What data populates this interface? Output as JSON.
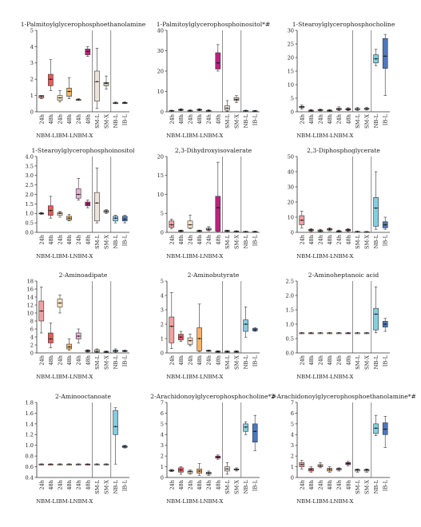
{
  "figure": {
    "categories": [
      "24h",
      "48h",
      "24h",
      "48h",
      "24h",
      "48h",
      "SM-L",
      "SM-X",
      "NB-L",
      "IB-L"
    ],
    "group_labels": [
      "NBM-L",
      "IBM-L",
      "NBM-X"
    ],
    "colors": [
      "#f2a0a0",
      "#e85a5a",
      "#fde3c2",
      "#f4b36a",
      "#e7b2d6",
      "#b8257e",
      "#ece4da",
      "#cfc9b8",
      "#86cde2",
      "#4b79bd"
    ]
  },
  "chart_data": [
    {
      "type": "box",
      "title": "1-Palmitoylglycerophosphoethanolamine",
      "ylim": [
        0,
        5
      ],
      "yticks": [
        0,
        1,
        2,
        3,
        4,
        5
      ],
      "boxes": [
        [
          0.8,
          0.85,
          0.95,
          1.0,
          1.0
        ],
        [
          1.3,
          1.6,
          2.0,
          2.3,
          3.2
        ],
        [
          0.6,
          0.7,
          0.85,
          1.0,
          1.3
        ],
        [
          0.8,
          0.95,
          1.25,
          1.45,
          2.1
        ],
        [
          0.7,
          0.72,
          0.74,
          0.76,
          0.8
        ],
        [
          3.4,
          3.5,
          3.7,
          3.85,
          4.0
        ],
        [
          0.2,
          0.65,
          1.85,
          2.5,
          3.9
        ],
        [
          1.4,
          1.6,
          1.75,
          1.8,
          2.2
        ],
        [
          0.5,
          0.52,
          0.54,
          0.56,
          0.6
        ],
        [
          0.5,
          0.53,
          0.55,
          0.57,
          0.6
        ]
      ]
    },
    {
      "type": "box",
      "title": "1-Palmitoylglycerophosphoinositol*#",
      "ylim": [
        0,
        40
      ],
      "yticks": [
        0,
        10,
        20,
        30,
        40
      ],
      "boxes": [
        [
          0.2,
          0.3,
          0.5,
          0.6,
          0.8
        ],
        [
          0.5,
          0.8,
          1.0,
          1.2,
          1.5
        ],
        [
          0.2,
          0.4,
          0.6,
          0.7,
          1.0
        ],
        [
          0.5,
          0.8,
          1.0,
          1.2,
          1.5
        ],
        [
          0.2,
          0.4,
          0.6,
          0.7,
          1.0
        ],
        [
          20,
          21,
          24,
          29,
          33
        ],
        [
          0.3,
          0.8,
          1.8,
          3.0,
          5.5
        ],
        [
          4.5,
          5.5,
          6.0,
          7.0,
          8.0
        ],
        [
          0.2,
          0.3,
          0.5,
          0.6,
          0.8
        ],
        [
          0.2,
          0.3,
          0.4,
          0.5,
          0.7
        ]
      ]
    },
    {
      "type": "box",
      "title": "1-Stearoylglycerophosphocholine",
      "ylim": [
        0,
        30
      ],
      "yticks": [
        0,
        5,
        10,
        15,
        20,
        25,
        30
      ],
      "boxes": [
        [
          1.0,
          1.5,
          1.8,
          2.0,
          2.5
        ],
        [
          0.2,
          0.4,
          0.5,
          0.6,
          0.8
        ],
        [
          0.3,
          0.5,
          0.6,
          0.8,
          1.0
        ],
        [
          0.2,
          0.4,
          0.5,
          0.6,
          0.8
        ],
        [
          0.4,
          0.7,
          1.0,
          1.3,
          1.8
        ],
        [
          0.4,
          0.7,
          0.9,
          1.2,
          1.5
        ],
        [
          0.5,
          0.8,
          1.0,
          1.2,
          1.6
        ],
        [
          0.6,
          0.9,
          1.1,
          1.3,
          1.7
        ],
        [
          17,
          18,
          19.5,
          21,
          23
        ],
        [
          6,
          16,
          20.5,
          27,
          28.5
        ]
      ]
    },
    {
      "type": "box",
      "title": "1-Stearoylglycerophosphoinositol",
      "ylim": [
        0,
        4
      ],
      "yticks": [
        0,
        0.5,
        1.0,
        1.5,
        2.0,
        2.5,
        3.0,
        3.5,
        4.0
      ],
      "boxes": [
        [
          0.95,
          0.98,
          1.0,
          1.02,
          1.05
        ],
        [
          0.75,
          0.9,
          1.15,
          1.4,
          1.9
        ],
        [
          0.8,
          0.9,
          1.0,
          1.05,
          1.1
        ],
        [
          0.6,
          0.65,
          0.75,
          0.85,
          0.95
        ],
        [
          1.7,
          1.8,
          2.0,
          2.3,
          2.85
        ],
        [
          1.3,
          1.4,
          1.5,
          1.6,
          1.7
        ],
        [
          0.5,
          0.6,
          1.55,
          2.1,
          3.4
        ],
        [
          1.0,
          1.05,
          1.1,
          1.15,
          1.2
        ],
        [
          0.5,
          0.6,
          0.75,
          0.85,
          0.9
        ],
        [
          0.5,
          0.6,
          0.7,
          0.85,
          0.9
        ]
      ]
    },
    {
      "type": "box",
      "title": "2,3-Dihydroxyisovalerate",
      "ylim": [
        0,
        20
      ],
      "yticks": [
        0,
        5,
        10,
        15,
        20
      ],
      "boxes": [
        [
          1.0,
          1.3,
          2.0,
          3.0,
          3.5
        ],
        [
          0.2,
          0.3,
          0.4,
          0.5,
          0.6
        ],
        [
          1.0,
          1.2,
          2.0,
          3.0,
          4.5
        ],
        [
          0.2,
          0.3,
          0.4,
          0.5,
          0.6
        ],
        [
          0.4,
          0.6,
          0.8,
          1.1,
          1.5
        ],
        [
          0.2,
          0.3,
          6.5,
          9.5,
          18.5
        ],
        [
          0.2,
          0.3,
          0.4,
          0.5,
          0.6
        ],
        [
          0.1,
          0.2,
          0.3,
          0.35,
          0.4
        ],
        [
          0.1,
          0.15,
          0.2,
          0.25,
          0.3
        ],
        [
          0.1,
          0.15,
          0.2,
          0.25,
          0.3
        ]
      ]
    },
    {
      "type": "box",
      "title": "2,3-Diphosphoglycerate",
      "ylim": [
        0,
        50
      ],
      "yticks": [
        0,
        10,
        20,
        30,
        40,
        50
      ],
      "boxes": [
        [
          3,
          5,
          8,
          11,
          14
        ],
        [
          0.5,
          1,
          1.5,
          2,
          2.5
        ],
        [
          0.3,
          0.5,
          1,
          1.5,
          2
        ],
        [
          1,
          1.5,
          2,
          2.5,
          3
        ],
        [
          0.2,
          0.5,
          0.8,
          1,
          1.5
        ],
        [
          0.5,
          1,
          1.5,
          2,
          2.5
        ],
        [
          0.2,
          0.3,
          0.5,
          0.6,
          0.8
        ],
        [
          0.2,
          0.3,
          0.4,
          0.5,
          0.6
        ],
        [
          2,
          4,
          16,
          23,
          40
        ],
        [
          2,
          3,
          5,
          7,
          10
        ]
      ]
    },
    {
      "type": "box",
      "title": "2-Aminoadipate",
      "ylim": [
        0,
        18
      ],
      "yticks": [
        0,
        2,
        4,
        6,
        8,
        10,
        12,
        14,
        16,
        18
      ],
      "boxes": [
        [
          5,
          8,
          10.5,
          13,
          16.5
        ],
        [
          1.3,
          2.5,
          3.5,
          5,
          7.5
        ],
        [
          10,
          11.5,
          12.5,
          13.5,
          14.5
        ],
        [
          0.7,
          1,
          1.5,
          2.2,
          3.5
        ],
        [
          2.5,
          3.5,
          4.2,
          5,
          6
        ],
        [
          0.2,
          0.35,
          0.5,
          0.65,
          0.8
        ],
        [
          0.1,
          0.2,
          0.4,
          0.8,
          1.0
        ],
        [
          0.1,
          0.2,
          0.3,
          0.4,
          0.5
        ],
        [
          0.1,
          0.3,
          0.5,
          0.7,
          1.0
        ],
        [
          0.3,
          0.4,
          0.5,
          0.6,
          0.7
        ]
      ]
    },
    {
      "type": "box",
      "title": "2-Aminobutyrate",
      "ylim": [
        0,
        5
      ],
      "yticks": [
        0,
        1,
        2,
        3,
        4,
        5
      ],
      "boxes": [
        [
          0.3,
          0.7,
          1.85,
          2.5,
          4.2
        ],
        [
          0.8,
          0.9,
          1.1,
          1.3,
          1.5
        ],
        [
          0.5,
          0.6,
          0.85,
          1.05,
          1.3
        ],
        [
          0.1,
          0.15,
          1.0,
          1.75,
          3.4
        ],
        [
          0.1,
          0.12,
          0.15,
          0.18,
          0.2
        ],
        [
          0.05,
          0.07,
          0.1,
          0.12,
          0.15
        ],
        [
          0.05,
          0.07,
          0.1,
          0.12,
          0.15
        ],
        [
          0.05,
          0.07,
          0.1,
          0.12,
          0.15
        ],
        [
          1.1,
          1.5,
          2.0,
          2.3,
          3.2
        ],
        [
          1.5,
          1.55,
          1.6,
          1.7,
          1.75
        ]
      ]
    },
    {
      "type": "box",
      "title": "2-Aminoheptanoic acid",
      "ylim": [
        0,
        2.5
      ],
      "yticks": [
        0,
        0.5,
        1.0,
        1.5,
        2.0,
        2.5
      ],
      "boxes": [
        [
          0.7,
          0.7,
          0.7,
          0.7,
          0.7
        ],
        [
          0.7,
          0.7,
          0.7,
          0.7,
          0.7
        ],
        [
          0.7,
          0.7,
          0.7,
          0.7,
          0.7
        ],
        [
          0.7,
          0.7,
          0.7,
          0.7,
          0.7
        ],
        [
          0.7,
          0.7,
          0.7,
          0.7,
          0.7
        ],
        [
          0.7,
          0.7,
          0.7,
          0.7,
          0.7
        ],
        [
          0.7,
          0.7,
          0.7,
          0.7,
          0.7
        ],
        [
          0.7,
          0.7,
          0.7,
          0.7,
          0.7
        ],
        [
          0.7,
          0.8,
          1.35,
          1.55,
          2.3
        ],
        [
          0.75,
          0.9,
          1.0,
          1.1,
          1.2
        ]
      ]
    },
    {
      "type": "box",
      "title": "2-Aminooctanoate",
      "ylim": [
        0.4,
        1.8
      ],
      "yticks": [
        0.4,
        0.6,
        0.8,
        1.0,
        1.2,
        1.4,
        1.6,
        1.8
      ],
      "boxes": [
        [
          0.65,
          0.65,
          0.65,
          0.65,
          0.65
        ],
        [
          0.65,
          0.65,
          0.65,
          0.65,
          0.65
        ],
        [
          0.65,
          0.65,
          0.65,
          0.65,
          0.65
        ],
        [
          0.65,
          0.65,
          0.65,
          0.65,
          0.65
        ],
        [
          0.65,
          0.65,
          0.65,
          0.65,
          0.65
        ],
        [
          0.65,
          0.65,
          0.65,
          0.65,
          0.65
        ],
        [
          0.65,
          0.65,
          0.65,
          0.65,
          0.65
        ],
        [
          0.65,
          0.65,
          0.65,
          0.65,
          0.65
        ],
        [
          0.65,
          1.2,
          1.35,
          1.65,
          1.7
        ],
        [
          0.95,
          0.96,
          0.98,
          0.99,
          1.0
        ]
      ]
    },
    {
      "type": "box",
      "title": "2-Arachidonoylglycerophosphocholine*#",
      "ylim": [
        0,
        7
      ],
      "yticks": [
        0,
        1,
        2,
        3,
        4,
        5,
        6,
        7
      ],
      "boxes": [
        [
          0.55,
          0.6,
          0.65,
          0.7,
          0.75
        ],
        [
          0.3,
          0.5,
          0.7,
          0.9,
          1.0
        ],
        [
          0.3,
          0.4,
          0.55,
          0.6,
          0.7
        ],
        [
          0.2,
          0.4,
          0.6,
          0.8,
          1.3
        ],
        [
          0.2,
          0.3,
          0.4,
          0.5,
          0.6
        ],
        [
          1.7,
          1.8,
          1.9,
          2.0,
          2.1
        ],
        [
          0.3,
          0.6,
          0.8,
          1.0,
          1.4
        ],
        [
          0.6,
          0.7,
          0.75,
          0.8,
          0.9
        ],
        [
          4.0,
          4.3,
          4.7,
          5.0,
          5.2
        ],
        [
          2.5,
          3.3,
          4.3,
          5.0,
          5.8
        ]
      ]
    },
    {
      "type": "box",
      "title": "2-Arachidonoylglycerophosphoethanolamine*#",
      "ylim": [
        0,
        7
      ],
      "yticks": [
        0,
        1,
        2,
        3,
        4,
        5,
        6,
        7
      ],
      "boxes": [
        [
          0.8,
          1.0,
          1.2,
          1.4,
          1.6
        ],
        [
          0.5,
          0.6,
          0.75,
          0.85,
          1.0
        ],
        [
          0.9,
          1.0,
          1.1,
          1.2,
          1.4
        ],
        [
          0.5,
          0.6,
          0.75,
          0.85,
          1.0
        ],
        [
          0.6,
          0.7,
          0.8,
          0.85,
          0.9
        ],
        [
          1.1,
          1.2,
          1.3,
          1.4,
          1.5
        ],
        [
          0.5,
          0.6,
          0.7,
          0.75,
          0.8
        ],
        [
          0.5,
          0.6,
          0.7,
          0.75,
          0.8
        ],
        [
          3.9,
          4.1,
          4.6,
          5.0,
          5.8
        ],
        [
          2.8,
          4.0,
          4.5,
          5.1,
          5.7
        ]
      ]
    }
  ]
}
